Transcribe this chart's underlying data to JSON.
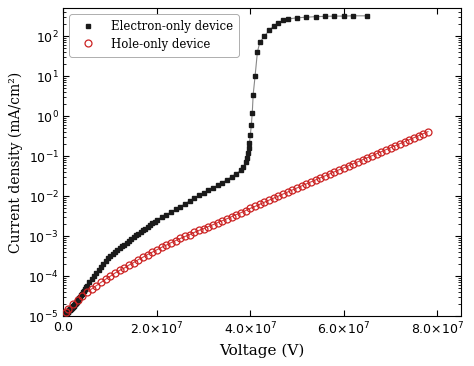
{
  "title": "",
  "xlabel": "Voltage (V)",
  "ylabel": "Current density (mA/cm²)",
  "xlim": [
    0,
    85000000.0
  ],
  "ylim": [
    1e-05,
    500.0
  ],
  "electron_x": [
    100000.0,
    200000.0,
    300000.0,
    400000.0,
    500000.0,
    600000.0,
    700000.0,
    800000.0,
    900000.0,
    1000000.0,
    1100000.0,
    1200000.0,
    1300000.0,
    1400000.0,
    1500000.0,
    1600000.0,
    1700000.0,
    1800000.0,
    1900000.0,
    2000000.0,
    2100000.0,
    2200000.0,
    2300000.0,
    2400000.0,
    2500000.0,
    2600000.0,
    2700000.0,
    2800000.0,
    2900000.0,
    3000000.0,
    3200000.0,
    3400000.0,
    3600000.0,
    3800000.0,
    4000000.0,
    4200000.0,
    4400000.0,
    4600000.0,
    4800000.0,
    5000000.0,
    5500000.0,
    6000000.0,
    6500000.0,
    7000000.0,
    7500000.0,
    8000000.0,
    8500000.0,
    9000000.0,
    9500000.0,
    10000000.0,
    10500000.0,
    11000000.0,
    11500000.0,
    12000000.0,
    12500000.0,
    13000000.0,
    13500000.0,
    14000000.0,
    14500000.0,
    15000000.0,
    15500000.0,
    16000000.0,
    16500000.0,
    17000000.0,
    17500000.0,
    18000000.0,
    18500000.0,
    19000000.0,
    19500000.0,
    20000000.0,
    21000000.0,
    22000000.0,
    23000000.0,
    24000000.0,
    25000000.0,
    26000000.0,
    27000000.0,
    28000000.0,
    29000000.0,
    30000000.0,
    31000000.0,
    32000000.0,
    33000000.0,
    34000000.0,
    35000000.0,
    36000000.0,
    37000000.0,
    38000000.0,
    38500000.0,
    39000000.0,
    39200000.0,
    39400000.0,
    39600000.0,
    39800000.0,
    40000000.0,
    40200000.0,
    40400000.0,
    40600000.0,
    41000000.0,
    41500000.0,
    42000000.0,
    43000000.0,
    44000000.0,
    45000000.0,
    46000000.0,
    47000000.0,
    48000000.0,
    50000000.0,
    52000000.0,
    54000000.0,
    56000000.0,
    58000000.0,
    60000000.0,
    62000000.0,
    65000000.0
  ],
  "electron_y": [
    1.2e-05,
    1.2e-05,
    1.2e-05,
    1.2e-05,
    1.2e-05,
    1.2e-05,
    1.2e-05,
    1.3e-05,
    1.3e-05,
    1.3e-05,
    1.4e-05,
    1.4e-05,
    1.4e-05,
    1.5e-05,
    1.5e-05,
    1.5e-05,
    1.6e-05,
    1.6e-05,
    1.7e-05,
    1.7e-05,
    1.8e-05,
    1.8e-05,
    1.9e-05,
    2e-05,
    2e-05,
    2.1e-05,
    2.2e-05,
    2.3e-05,
    2.4e-05,
    2.5e-05,
    2.7e-05,
    2.9e-05,
    3.1e-05,
    3.4e-05,
    3.7e-05,
    4e-05,
    4.4e-05,
    4.8e-05,
    5.3e-05,
    5.8e-05,
    7e-05,
    8.5e-05,
    0.0001,
    0.00012,
    0.00014,
    0.00017,
    0.0002,
    0.00024,
    0.00028,
    0.00032,
    0.00036,
    0.0004,
    0.00045,
    0.0005,
    0.00056,
    0.00062,
    0.00069,
    0.00077,
    0.00085,
    0.00094,
    0.00105,
    0.00115,
    0.00125,
    0.0014,
    0.00155,
    0.0017,
    0.0019,
    0.0021,
    0.0023,
    0.0026,
    0.003,
    0.0035,
    0.004,
    0.0047,
    0.0055,
    0.0065,
    0.0077,
    0.009,
    0.0105,
    0.012,
    0.014,
    0.016,
    0.019,
    0.022,
    0.026,
    0.031,
    0.037,
    0.045,
    0.055,
    0.07,
    0.09,
    0.12,
    0.16,
    0.22,
    0.35,
    0.6,
    1.2,
    3.5,
    10.0,
    40.0,
    70.0,
    100.0,
    140.0,
    180.0,
    220.0,
    250.0,
    270.0,
    290.0,
    300.0,
    310.0,
    315.0,
    320.0,
    320.0,
    325.0,
    325.0
  ],
  "hole_x": [
    500000.0,
    1000000.0,
    2000000.0,
    3000000.0,
    4000000.0,
    5000000.0,
    6000000.0,
    7000000.0,
    8000000.0,
    9000000.0,
    10000000.0,
    11000000.0,
    12000000.0,
    13000000.0,
    14000000.0,
    15000000.0,
    16000000.0,
    17000000.0,
    18000000.0,
    19000000.0,
    20000000.0,
    21000000.0,
    22000000.0,
    23000000.0,
    24000000.0,
    25000000.0,
    26000000.0,
    27000000.0,
    28000000.0,
    29000000.0,
    30000000.0,
    31000000.0,
    32000000.0,
    33000000.0,
    34000000.0,
    35000000.0,
    36000000.0,
    37000000.0,
    38000000.0,
    39000000.0,
    40000000.0,
    41000000.0,
    42000000.0,
    43000000.0,
    44000000.0,
    45000000.0,
    46000000.0,
    47000000.0,
    48000000.0,
    49000000.0,
    50000000.0,
    51000000.0,
    52000000.0,
    53000000.0,
    54000000.0,
    55000000.0,
    56000000.0,
    57000000.0,
    58000000.0,
    59000000.0,
    60000000.0,
    61000000.0,
    62000000.0,
    63000000.0,
    64000000.0,
    65000000.0,
    66000000.0,
    67000000.0,
    68000000.0,
    69000000.0,
    70000000.0,
    71000000.0,
    72000000.0,
    73000000.0,
    74000000.0,
    75000000.0,
    76000000.0,
    77000000.0,
    78000000.0
  ],
  "hole_y": [
    1.3e-05,
    1.5e-05,
    2e-05,
    2.5e-05,
    3.2e-05,
    4e-05,
    4.8e-05,
    5.8e-05,
    7e-05,
    8.4e-05,
    0.0001,
    0.00012,
    0.00014,
    0.00016,
    0.00019,
    0.00022,
    0.00026,
    0.0003,
    0.00035,
    0.0004,
    0.00046,
    0.00053,
    0.0006,
    0.00069,
    0.00078,
    0.00088,
    0.00099,
    0.0011,
    0.00125,
    0.0014,
    0.00155,
    0.00175,
    0.00195,
    0.0022,
    0.00245,
    0.00275,
    0.0031,
    0.0035,
    0.0039,
    0.0044,
    0.005,
    0.0056,
    0.0063,
    0.0071,
    0.008,
    0.009,
    0.0101,
    0.0114,
    0.0128,
    0.0144,
    0.0162,
    0.0182,
    0.0205,
    0.023,
    0.0258,
    0.029,
    0.0325,
    0.0365,
    0.041,
    0.046,
    0.0515,
    0.058,
    0.065,
    0.073,
    0.082,
    0.092,
    0.103,
    0.116,
    0.13,
    0.146,
    0.164,
    0.184,
    0.207,
    0.232,
    0.26,
    0.292,
    0.328,
    0.368,
    0.413
  ],
  "electron_color": "#1a1a1a",
  "hole_color": "#cc2222",
  "line_color_electron": "#888888",
  "line_color_hole": "#cc4444",
  "legend_labels": [
    "Electron-only device",
    "Hole-only device"
  ],
  "bg_color": "#ffffff"
}
